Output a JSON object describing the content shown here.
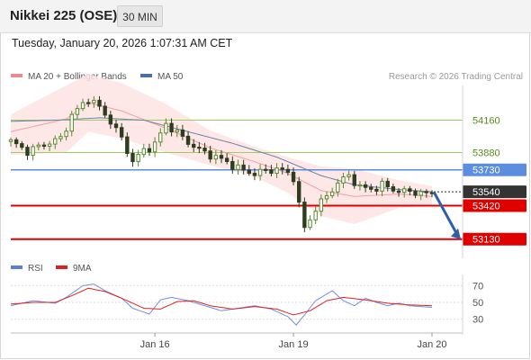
{
  "header": {
    "title": "Nikkei 225 (OSE)",
    "timeframe": "30 MIN",
    "timestamp": "Tuesday, January 20, 2026 1:07:31 AM CET"
  },
  "legend": {
    "main": [
      {
        "label": "MA 20 + Bollinger Bands",
        "color": "#f08a8a"
      },
      {
        "label": "MA 50",
        "color": "#4a6fa5"
      }
    ],
    "indicator": [
      {
        "label": "RSI",
        "color": "#5b7fd6"
      },
      {
        "label": "9MA",
        "color": "#e02020"
      }
    ]
  },
  "copyright": "Research © 2026 Trading Central",
  "colors": {
    "bull": "#5a8a2e",
    "bear": "#2e3d1f",
    "resistance_green": "#9ccc65",
    "pivot_blue": "#5b8de0",
    "support_red": "#e00000",
    "current_dark": "#333333",
    "bb_fill": "#fde3e3",
    "ma20": "#f0a0a0",
    "ma50": "#6a7fa8",
    "rsi": "#6f8fe0",
    "rsi_ma": "#e02020",
    "arrow": "#2f5fa8"
  },
  "chart_data": [
    {
      "type": "candlestick",
      "title": "",
      "x_tick_labels": [
        "Jan 16",
        "Jan 19",
        "Jan 20"
      ],
      "ylim": [
        52980,
        54460
      ],
      "levels": [
        {
          "value": 54160,
          "label": "54160",
          "role": "resistance"
        },
        {
          "value": 53880,
          "label": "53880",
          "role": "resistance"
        },
        {
          "value": 53730,
          "label": "53730",
          "role": "pivot"
        },
        {
          "value": 53540,
          "label": "53540",
          "role": "current"
        },
        {
          "value": 53420,
          "label": "53420",
          "role": "support"
        },
        {
          "value": 53130,
          "label": "53130",
          "role": "support"
        }
      ],
      "close_path": [
        [
          0,
          53975
        ],
        [
          3,
          53890
        ],
        [
          6,
          53950
        ],
        [
          9,
          54000
        ],
        [
          11,
          54200
        ],
        [
          13,
          54300
        ],
        [
          14,
          54350
        ],
        [
          16,
          54270
        ],
        [
          18,
          54150
        ],
        [
          20,
          54000
        ],
        [
          22,
          53800
        ],
        [
          24,
          53900
        ],
        [
          26,
          53950
        ],
        [
          28,
          54130
        ],
        [
          30,
          54050
        ],
        [
          32,
          53970
        ],
        [
          34,
          53900
        ],
        [
          36,
          53860
        ],
        [
          38,
          53820
        ],
        [
          40,
          53770
        ],
        [
          42,
          53720
        ],
        [
          44,
          53700
        ],
        [
          46,
          53720
        ],
        [
          48,
          53740
        ],
        [
          50,
          53700
        ],
        [
          51.5,
          53650
        ],
        [
          52.5,
          53200
        ],
        [
          53.5,
          53250
        ],
        [
          55,
          53400
        ],
        [
          57,
          53500
        ],
        [
          59,
          53620
        ],
        [
          61,
          53680
        ],
        [
          63,
          53580
        ],
        [
          65,
          53560
        ],
        [
          67,
          53600
        ],
        [
          69,
          53560
        ],
        [
          71,
          53540
        ],
        [
          73,
          53540
        ],
        [
          75,
          53520
        ],
        [
          76,
          53520
        ]
      ],
      "ma20": [
        [
          0,
          54060
        ],
        [
          10,
          54170
        ],
        [
          14,
          54310
        ],
        [
          20,
          54240
        ],
        [
          28,
          54090
        ],
        [
          36,
          53920
        ],
        [
          44,
          53800
        ],
        [
          50,
          53700
        ],
        [
          56,
          53550
        ],
        [
          62,
          53500
        ],
        [
          70,
          53520
        ],
        [
          76,
          53500
        ]
      ],
      "bb_upper": [
        [
          0,
          54210
        ],
        [
          10,
          54460
        ],
        [
          14,
          54560
        ],
        [
          20,
          54480
        ],
        [
          28,
          54300
        ],
        [
          36,
          54070
        ],
        [
          44,
          53930
        ],
        [
          50,
          53840
        ],
        [
          56,
          53760
        ],
        [
          62,
          53740
        ],
        [
          70,
          53640
        ],
        [
          76,
          53590
        ]
      ],
      "bb_lower": [
        [
          0,
          53860
        ],
        [
          10,
          53880
        ],
        [
          14,
          54060
        ],
        [
          20,
          54000
        ],
        [
          28,
          53880
        ],
        [
          36,
          53770
        ],
        [
          44,
          53670
        ],
        [
          50,
          53530
        ],
        [
          56,
          53330
        ],
        [
          62,
          53260
        ],
        [
          70,
          53400
        ],
        [
          76,
          53420
        ]
      ],
      "ma50": [
        [
          0,
          54150
        ],
        [
          8,
          54160
        ],
        [
          16,
          54180
        ],
        [
          24,
          54160
        ],
        [
          32,
          54060
        ],
        [
          40,
          53960
        ],
        [
          48,
          53840
        ],
        [
          56,
          53680
        ],
        [
          62,
          53600
        ],
        [
          70,
          53560
        ],
        [
          76,
          53540
        ]
      ],
      "forecast_arrow": {
        "from": 53540,
        "to": 53130
      }
    },
    {
      "type": "line",
      "title": "",
      "ylim": [
        22,
        78
      ],
      "y_ticks": [
        70,
        50,
        30
      ],
      "series": [
        {
          "name": "RSI",
          "values": [
            [
              0,
              46
            ],
            [
              4,
              52
            ],
            [
              8,
              49
            ],
            [
              10,
              56
            ],
            [
              13,
              70
            ],
            [
              15,
              72
            ],
            [
              17,
              64
            ],
            [
              20,
              55
            ],
            [
              22,
              43
            ],
            [
              25,
              36
            ],
            [
              27,
              53
            ],
            [
              29,
              56
            ],
            [
              32,
              52
            ],
            [
              35,
              46
            ],
            [
              38,
              40
            ],
            [
              41,
              43
            ],
            [
              44,
              46
            ],
            [
              47,
              42
            ],
            [
              50,
              33
            ],
            [
              51.5,
              23
            ],
            [
              53,
              35
            ],
            [
              55,
              52
            ],
            [
              57,
              60
            ],
            [
              58,
              64
            ],
            [
              60,
              52
            ],
            [
              62,
              46
            ],
            [
              64,
              55
            ],
            [
              66,
              50
            ],
            [
              68,
              46
            ],
            [
              70,
              49
            ],
            [
              72,
              46
            ],
            [
              74,
              45
            ],
            [
              76,
              44
            ]
          ]
        },
        {
          "name": "9MA",
          "values": [
            [
              0,
              48
            ],
            [
              4,
              50
            ],
            [
              8,
              50
            ],
            [
              11,
              58
            ],
            [
              14,
              67
            ],
            [
              17,
              63
            ],
            [
              20,
              55
            ],
            [
              24,
              43
            ],
            [
              27,
              42
            ],
            [
              30,
              51
            ],
            [
              33,
              52
            ],
            [
              36,
              46
            ],
            [
              40,
              42
            ],
            [
              44,
              45
            ],
            [
              48,
              42
            ],
            [
              51,
              35
            ],
            [
              54,
              40
            ],
            [
              57,
              52
            ],
            [
              60,
              56
            ],
            [
              64,
              53
            ],
            [
              68,
              49
            ],
            [
              72,
              47
            ],
            [
              76,
              46
            ]
          ]
        }
      ]
    }
  ]
}
